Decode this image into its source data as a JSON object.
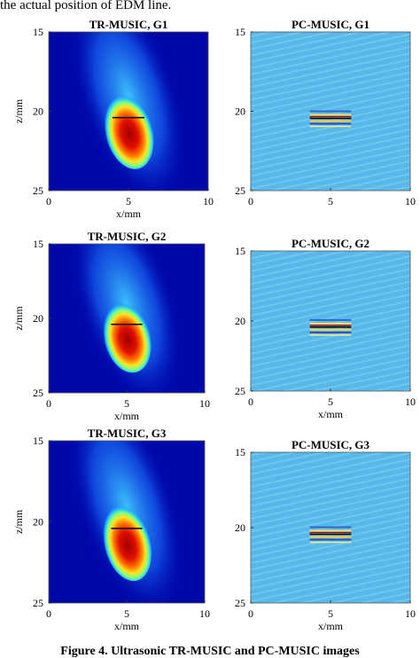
{
  "header": {
    "text": "the actual position of EDM line."
  },
  "panels": [
    {
      "title": "TR-MUSIC, G1",
      "xlabel": "x/mm",
      "ylabel": "z/mm",
      "xlim": [
        0,
        10
      ],
      "ylim": [
        15,
        25
      ],
      "xticks": [
        0,
        5,
        10
      ],
      "yticks": [
        15,
        20,
        25
      ]
    },
    {
      "title": "PC-MUSIC, G1",
      "xlim": [
        0,
        10
      ],
      "ylim": [
        15,
        25
      ],
      "xticks": [
        0,
        5,
        10
      ],
      "yticks": [
        15,
        20,
        25
      ]
    },
    {
      "title": "TR-MUSIC, G2",
      "xlabel": "x/mm",
      "ylabel": "z/mm",
      "xlim": [
        0,
        10
      ],
      "ylim": [
        15,
        25
      ],
      "xticks": [
        0,
        5,
        10
      ],
      "yticks": [
        15,
        20,
        25
      ]
    },
    {
      "title": "PC-MUSIC, G2",
      "xlabel": "x/mm",
      "xlim": [
        0,
        10
      ],
      "ylim": [
        15,
        25
      ],
      "xticks": [
        0,
        5,
        10
      ],
      "yticks": [
        15,
        20,
        25
      ]
    },
    {
      "title": "TR-MUSIC, G3",
      "xlabel": "x/mm",
      "ylabel": "z/mm",
      "xlim": [
        0,
        10
      ],
      "ylim": [
        15,
        25
      ],
      "xticks": [
        0,
        5,
        10
      ],
      "yticks": [
        15,
        20,
        25
      ]
    },
    {
      "title": "PC-MUSIC, G3",
      "xlabel": "x/mm",
      "xlim": [
        0,
        10
      ],
      "ylim": [
        15,
        25
      ],
      "xticks": [
        0,
        5,
        10
      ],
      "yticks": [
        15,
        20,
        25
      ]
    }
  ],
  "caption": "Figure 4. Ultrasonic TR-MUSIC and PC-MUSIC images"
}
